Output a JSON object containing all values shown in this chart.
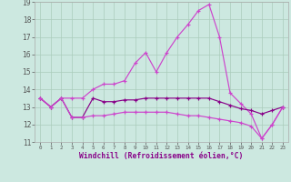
{
  "bg_color": "#cce8e0",
  "grid_color": "#aaccbb",
  "line_color1": "#cc44cc",
  "line_color2": "#880088",
  "hours": [
    0,
    1,
    2,
    3,
    4,
    5,
    6,
    7,
    8,
    9,
    10,
    11,
    12,
    13,
    14,
    15,
    16,
    17,
    18,
    19,
    20,
    21,
    22,
    23
  ],
  "series1": [
    13.5,
    13.0,
    13.5,
    13.5,
    13.5,
    14.0,
    14.3,
    14.3,
    14.5,
    15.5,
    16.1,
    15.0,
    16.1,
    17.0,
    17.7,
    18.5,
    18.85,
    17.0,
    13.8,
    13.2,
    12.6,
    11.2,
    12.0,
    13.0
  ],
  "series2": [
    13.5,
    13.0,
    13.5,
    12.4,
    12.4,
    13.5,
    13.3,
    13.3,
    13.4,
    13.4,
    13.5,
    13.5,
    13.5,
    13.5,
    13.5,
    13.5,
    13.5,
    13.3,
    13.1,
    12.9,
    12.8,
    12.6,
    12.8,
    13.0
  ],
  "series3": [
    13.5,
    13.0,
    13.5,
    12.4,
    12.4,
    12.5,
    12.5,
    12.6,
    12.7,
    12.7,
    12.7,
    12.7,
    12.7,
    12.6,
    12.5,
    12.5,
    12.4,
    12.3,
    12.2,
    12.1,
    11.9,
    11.2,
    12.0,
    13.0
  ],
  "ylim_min": 11,
  "ylim_max": 19,
  "yticks": [
    11,
    12,
    13,
    14,
    15,
    16,
    17,
    18,
    19
  ],
  "xlabel": "Windchill (Refroidissement éolien,°C)",
  "xtick_fontsize": 4.2,
  "ytick_fontsize": 5.5,
  "xlabel_fontsize": 5.8
}
